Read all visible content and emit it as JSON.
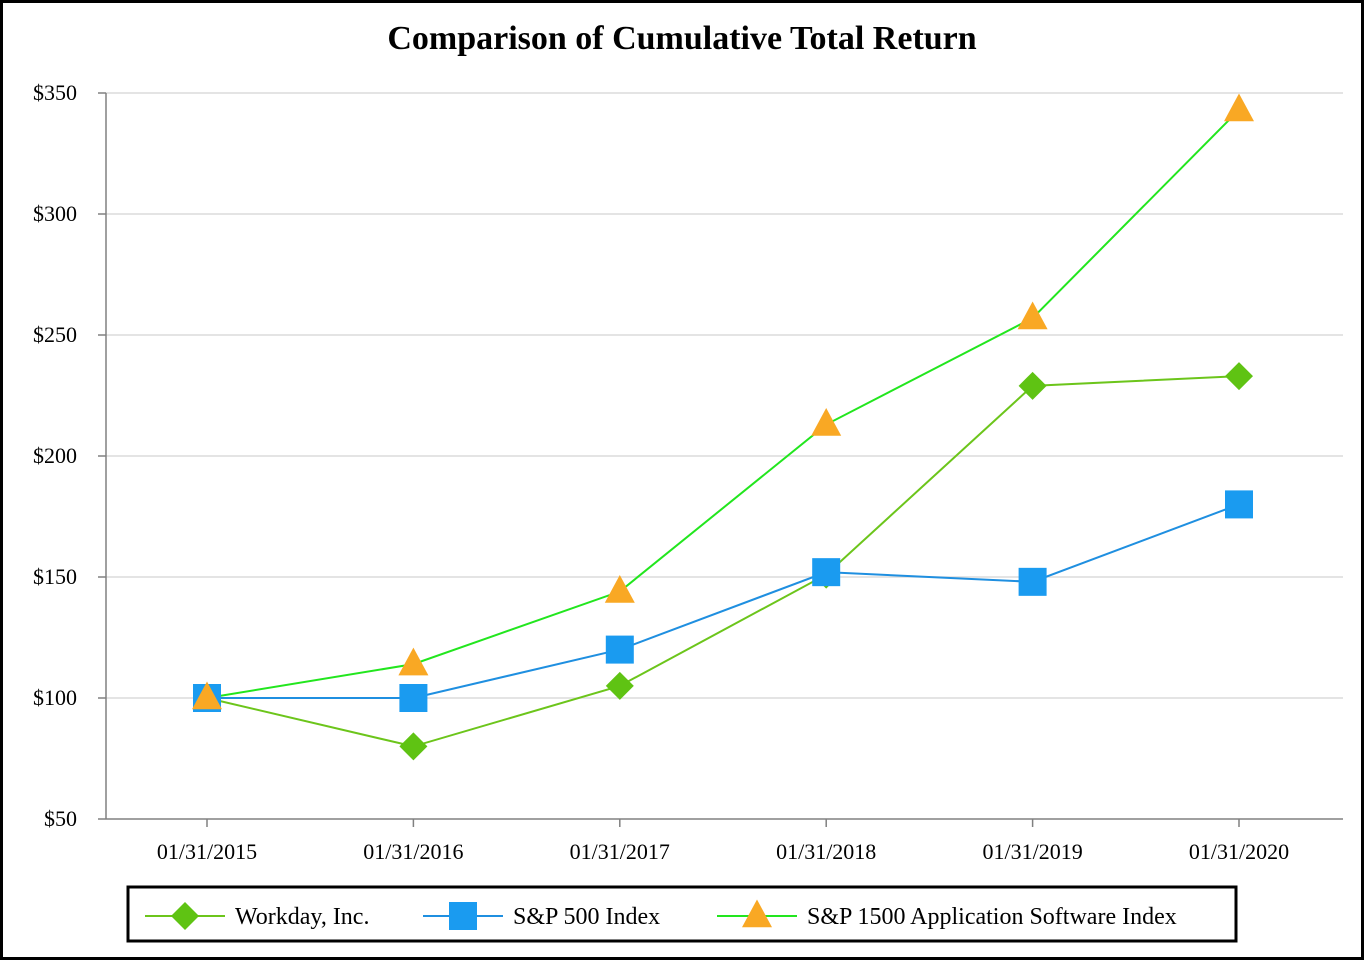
{
  "chart_data": {
    "type": "line",
    "title": "Comparison of Cumulative Total Return",
    "xlabel": "",
    "ylabel": "",
    "categories": [
      "01/31/2015",
      "01/31/2016",
      "01/31/2017",
      "01/31/2018",
      "01/31/2019",
      "01/31/2020"
    ],
    "y_ticks": [
      "$50",
      "$100",
      "$150",
      "$200",
      "$250",
      "$300",
      "$350"
    ],
    "y_tick_values": [
      50,
      100,
      150,
      200,
      250,
      300,
      350
    ],
    "ylim": [
      50,
      350
    ],
    "grid": true,
    "legend_position": "bottom",
    "series": [
      {
        "name": "Workday, Inc.",
        "marker": "diamond",
        "line_color": "#6cc51b",
        "marker_color": "#5fc313",
        "values": [
          100,
          80,
          105,
          151,
          229,
          233
        ]
      },
      {
        "name": "S&P 500 Index",
        "marker": "square",
        "line_color": "#1f8fe0",
        "marker_color": "#1a9bf0",
        "values": [
          100,
          100,
          120,
          152,
          148,
          180
        ]
      },
      {
        "name": "S&P 1500 Application Software Index",
        "marker": "triangle",
        "line_color": "#22e61e",
        "marker_color": "#f9a824",
        "values": [
          100,
          114,
          144,
          213,
          257,
          343
        ]
      }
    ]
  }
}
